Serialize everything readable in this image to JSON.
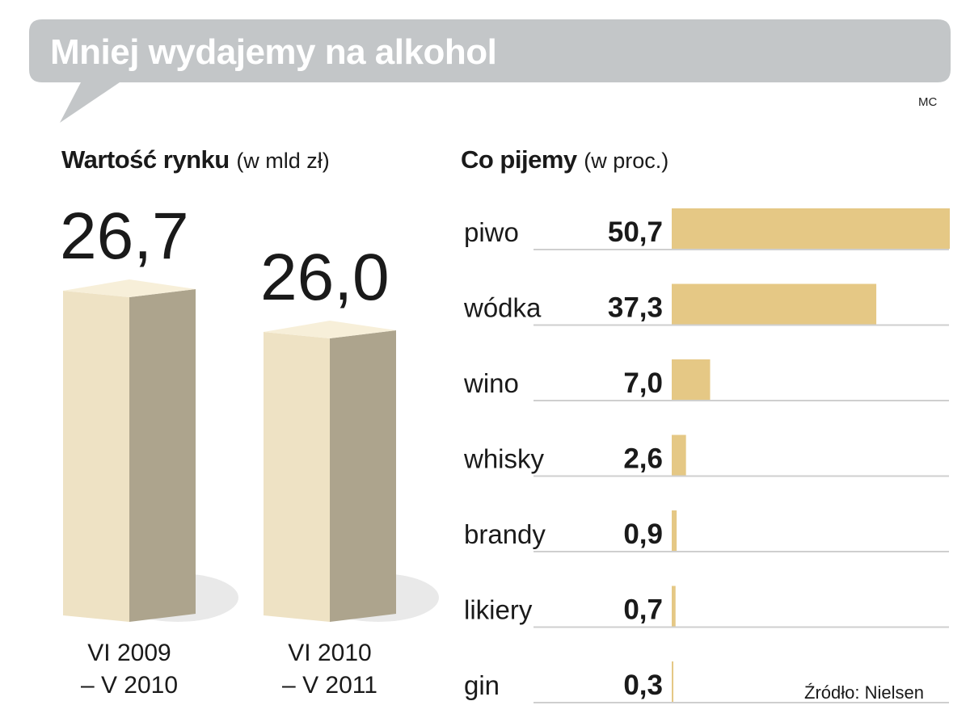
{
  "header": {
    "title": "Mniej wydajemy na alkohol",
    "author": "MC"
  },
  "colors": {
    "bubble": "#c3c6c8",
    "bar": "#e5c885",
    "column_front": "#eee2c4",
    "column_side": "#ada48d",
    "column_top": "#f7efd9",
    "rule": "#cfcfcf"
  },
  "chart_data": [
    {
      "type": "bar",
      "title": "Wartość rynku",
      "unit_note": "(w mld zł)",
      "categories": [
        "VI 2009\n– V 2010",
        "VI 2010\n– V 2011"
      ],
      "values": [
        26.7,
        26.0
      ],
      "value_labels": [
        "26,7",
        "26,0"
      ]
    },
    {
      "type": "bar",
      "orientation": "horizontal",
      "title": "Co pijemy",
      "unit_note": "(w proc.)",
      "categories": [
        "piwo",
        "wódka",
        "wino",
        "whisky",
        "brandy",
        "likiery",
        "gin"
      ],
      "values": [
        50.7,
        37.3,
        7.0,
        2.6,
        0.9,
        0.7,
        0.3
      ],
      "value_labels": [
        "50,7",
        "37,3",
        "7,0",
        "2,6",
        "0,9",
        "0,7",
        "0,3"
      ]
    }
  ],
  "source": "Źródło: Nielsen"
}
